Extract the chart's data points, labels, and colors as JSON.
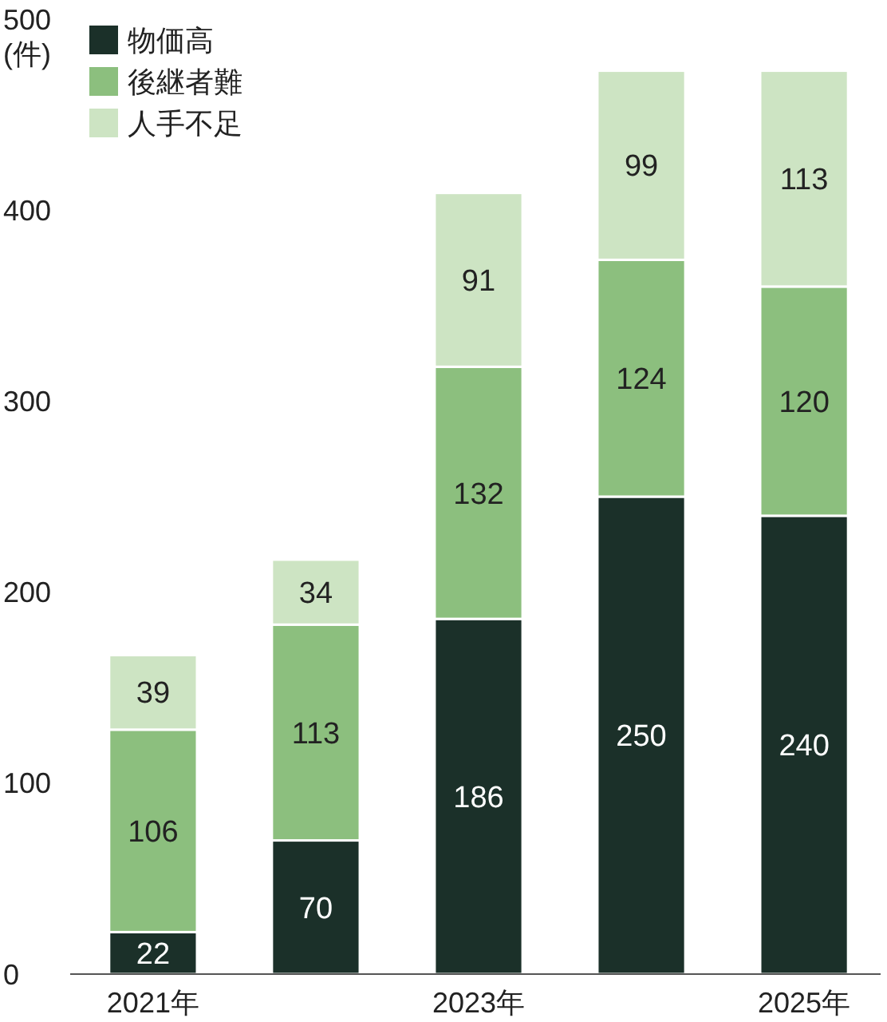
{
  "chart_data": {
    "type": "bar",
    "stacked": true,
    "ylabel": "(件)",
    "categories": [
      "2021年",
      null,
      "2023年",
      null,
      "2025年"
    ],
    "series": [
      {
        "name": "物価高",
        "color": "#1b3029",
        "values": [
          22,
          70,
          186,
          250,
          240
        ]
      },
      {
        "name": "後継者難",
        "color": "#8cbf7e",
        "values": [
          106,
          113,
          132,
          124,
          120
        ]
      },
      {
        "name": "人手不足",
        "color": "#cde4c3",
        "values": [
          39,
          34,
          91,
          99,
          113
        ]
      }
    ],
    "ylim": [
      0,
      500
    ],
    "yticks": [
      0,
      100,
      200,
      300,
      400,
      500
    ],
    "data_labels": true,
    "legend": "top left",
    "grid": false
  }
}
